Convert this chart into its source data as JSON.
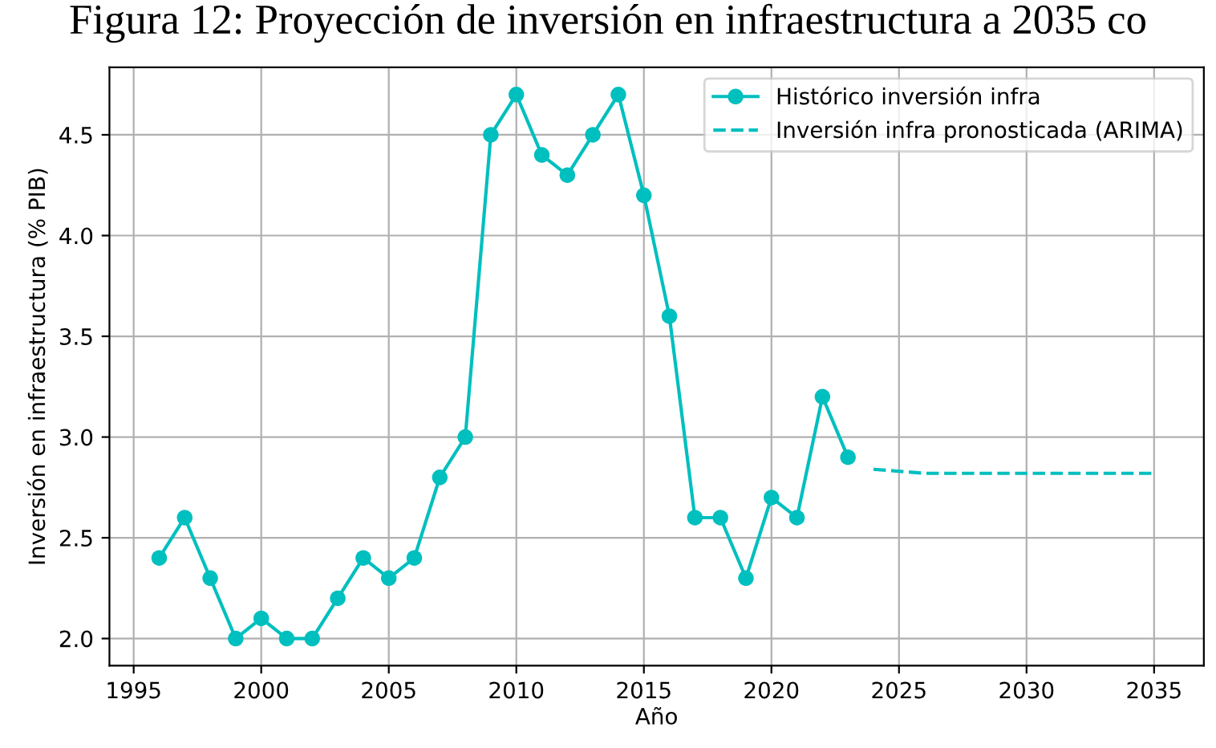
{
  "chart_data": {
    "type": "line",
    "title": "Figura 12: Proyección de inversión en infraestructura a 2035 co",
    "xlabel": "Año",
    "ylabel": "Inversión en infraestructura (% PIB)",
    "series": [
      {
        "name": "Histórico inversión infra",
        "color": "#00bfbf",
        "marker": "circle",
        "line_style": "solid",
        "x": [
          1996,
          1997,
          1998,
          1999,
          2000,
          2001,
          2002,
          2003,
          2004,
          2005,
          2006,
          2007,
          2008,
          2009,
          2010,
          2011,
          2012,
          2013,
          2014,
          2015,
          2016,
          2017,
          2018,
          2019,
          2020,
          2021,
          2022,
          2023
        ],
        "values": [
          2.4,
          2.6,
          2.3,
          2.0,
          2.1,
          2.0,
          2.0,
          2.2,
          2.4,
          2.3,
          2.4,
          2.8,
          3.0,
          4.5,
          4.7,
          4.4,
          4.3,
          4.5,
          4.7,
          4.2,
          3.6,
          2.6,
          2.6,
          2.3,
          2.7,
          2.6,
          3.2,
          2.9
        ]
      },
      {
        "name": "Inversión infra pronosticada (ARIMA)",
        "color": "#00bfbf",
        "marker": "none",
        "line_style": "dashed",
        "x": [
          2024,
          2025,
          2026,
          2027,
          2028,
          2029,
          2030,
          2031,
          2032,
          2033,
          2034,
          2035
        ],
        "values": [
          2.84,
          2.83,
          2.82,
          2.82,
          2.82,
          2.82,
          2.82,
          2.82,
          2.82,
          2.82,
          2.82,
          2.82
        ]
      }
    ],
    "xlim": [
      1994.05,
      2036.95
    ],
    "ylim": [
      1.865,
      4.835
    ],
    "xticks": [
      1995,
      2000,
      2005,
      2010,
      2015,
      2020,
      2025,
      2030,
      2035
    ],
    "yticks": [
      {
        "value": 2,
        "label": "2.0"
      },
      2.5,
      {
        "value": 3,
        "label": "3.0"
      },
      3.5,
      {
        "value": 4,
        "label": "4.0"
      },
      4.5
    ],
    "grid": true,
    "legend": "top right"
  }
}
